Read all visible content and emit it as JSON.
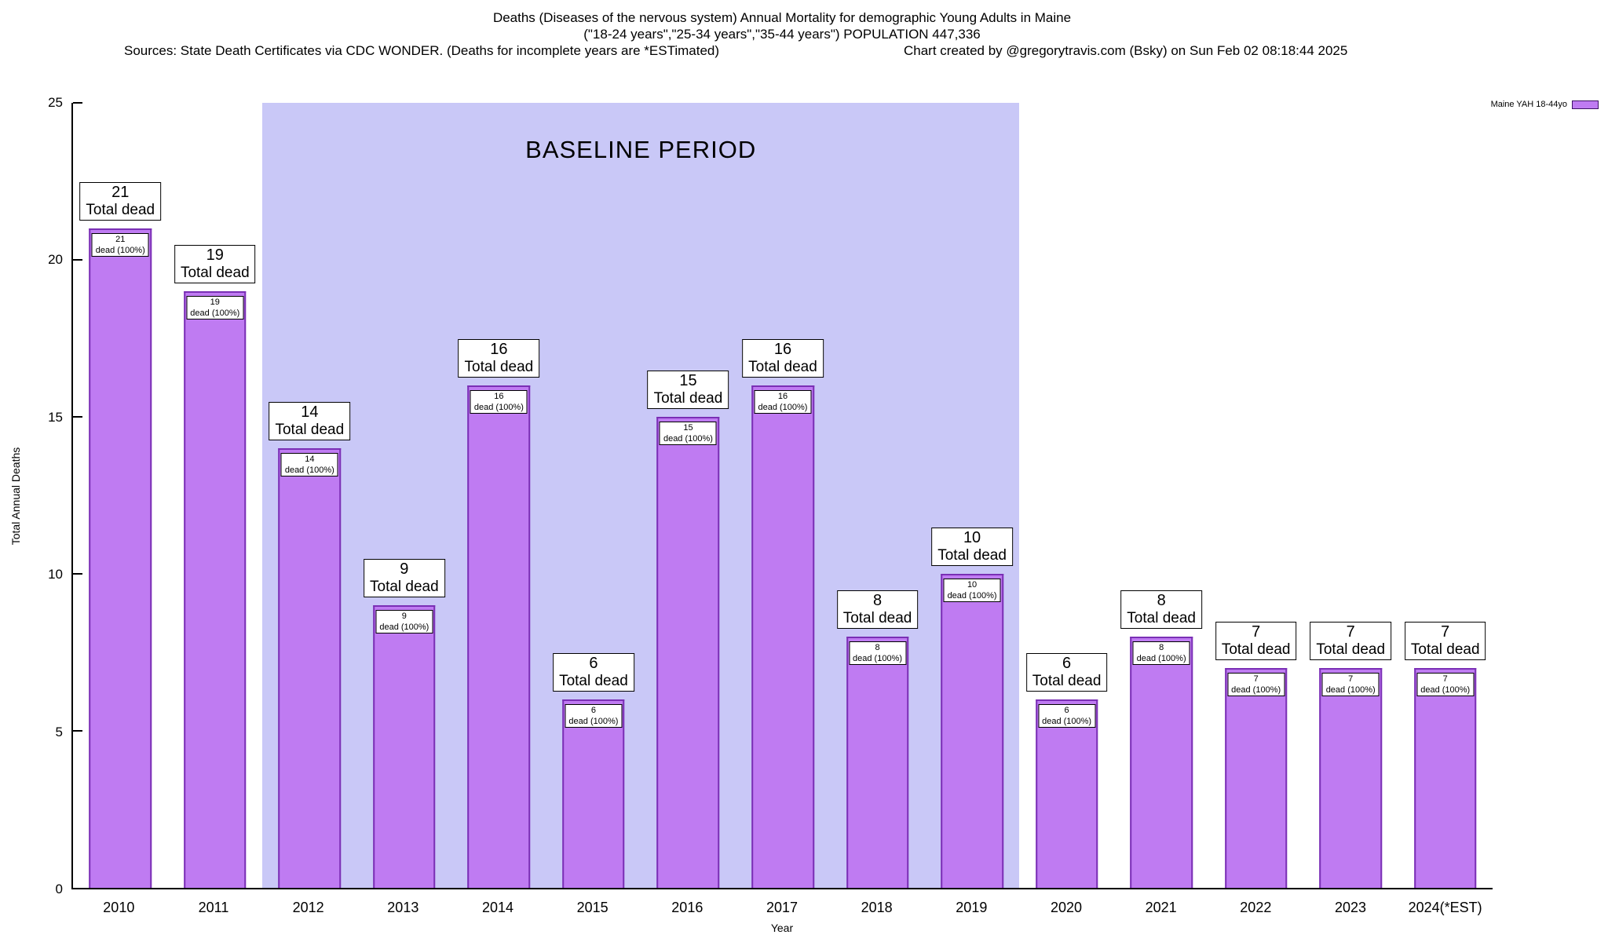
{
  "header": {
    "title_line1": "Deaths (Diseases of the nervous system) Annual Mortality for demographic Young Adults in Maine",
    "title_line2": "(\"18-24 years\",\"25-34 years\",\"35-44 years\") POPULATION 447,336",
    "sources": "Sources: State Death Certificates via CDC WONDER. (Deaths for incomplete years are *ESTimated)",
    "credit": "Chart created by @gregorytravis.com (Bsky) on Sun Feb 02 08:18:44 2025"
  },
  "legend": {
    "label": "Maine YAH 18-44yo",
    "position": "top-right"
  },
  "chart_data": {
    "type": "bar",
    "title": "Deaths (Diseases of the nervous system) Annual Mortality for demographic Young Adults in Maine",
    "subtitle": "(\"18-24 years\",\"25-34 years\",\"35-44 years\") POPULATION 447,336",
    "xlabel": "Year",
    "ylabel": "Total Annual Deaths",
    "ylim": [
      0,
      25
    ],
    "y_ticks": [
      0,
      5,
      10,
      15,
      20,
      25
    ],
    "grid": false,
    "legend_position": "top-right",
    "categories": [
      "2010",
      "2011",
      "2012",
      "2013",
      "2014",
      "2015",
      "2016",
      "2017",
      "2018",
      "2019",
      "2020",
      "2021",
      "2022",
      "2023",
      "2024(*EST)"
    ],
    "series": [
      {
        "name": "Maine YAH 18-44yo",
        "values": [
          21,
          19,
          14,
          9,
          16,
          6,
          15,
          16,
          8,
          10,
          6,
          8,
          7,
          7,
          7
        ]
      }
    ],
    "values": [
      21,
      19,
      14,
      9,
      16,
      6,
      15,
      16,
      8,
      10,
      6,
      8,
      7,
      7,
      7
    ],
    "annotation_total_suffix": "Total dead",
    "annotation_pct_suffix": "dead (100%)",
    "pct_value": "100%",
    "baseline_region": {
      "label": "BASELINE PERIOD",
      "start_category": "2012",
      "end_category": "2019",
      "start_index": 2,
      "end_index": 9
    },
    "colors": {
      "bar_fill": "#bf7bf2",
      "bar_border": "#7a2fb5",
      "baseline_bg": "#c9c8f7",
      "legend_swatch": "#bf7bf2",
      "background": "#ffffff"
    }
  }
}
